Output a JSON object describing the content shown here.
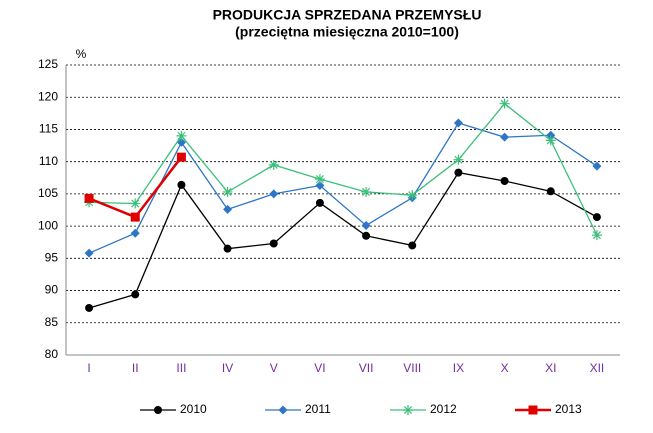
{
  "chart_data": {
    "type": "line",
    "title": "PRODUKCJA SPRZEDANA PRZEMYSŁU",
    "subtitle": "(przeciętna miesięczna 2010=100)",
    "y_label": "%",
    "categories": [
      "I",
      "II",
      "III",
      "IV",
      "V",
      "VI",
      "VII",
      "VIII",
      "IX",
      "X",
      "XI",
      "XII"
    ],
    "series": [
      {
        "name": "2010",
        "color": "#000000",
        "marker": "circle",
        "values": [
          87.3,
          89.4,
          106.4,
          96.5,
          97.3,
          103.6,
          98.5,
          97.0,
          108.3,
          107.0,
          105.4,
          101.4
        ]
      },
      {
        "name": "2011",
        "color": "#2e75c8",
        "marker": "diamond",
        "values": [
          95.8,
          98.9,
          113.0,
          102.6,
          105.0,
          106.3,
          100.1,
          104.4,
          116.0,
          113.8,
          114.1,
          109.3
        ]
      },
      {
        "name": "2012",
        "color": "#3cbf7a",
        "marker": "asterisk",
        "values": [
          103.7,
          103.5,
          114.0,
          105.3,
          109.5,
          107.3,
          105.3,
          104.8,
          110.3,
          119.0,
          113.3,
          98.6
        ]
      },
      {
        "name": "2013",
        "color": "#e00000",
        "marker": "square",
        "values": [
          104.3,
          101.4,
          110.7,
          null,
          null,
          null,
          null,
          null,
          null,
          null,
          null,
          null
        ]
      }
    ],
    "ylim": [
      80,
      125
    ],
    "yticks": [
      80,
      85,
      90,
      95,
      100,
      105,
      110,
      115,
      120,
      125
    ],
    "grid": true,
    "legend": "bottom"
  }
}
